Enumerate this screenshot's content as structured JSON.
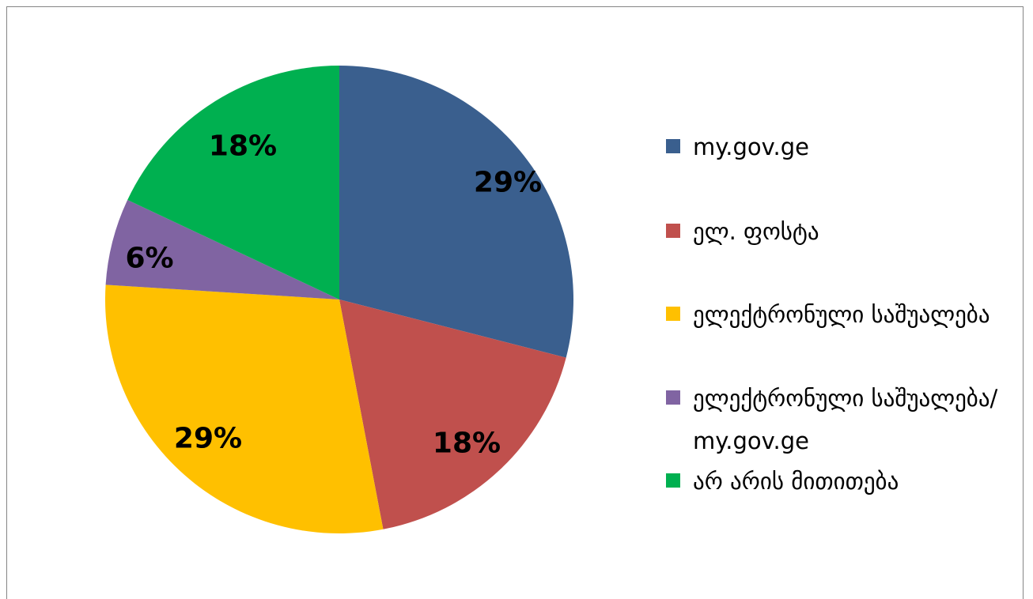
{
  "chart_data": {
    "type": "pie",
    "title": "",
    "start_angle_deg": 0,
    "direction": "clockwise",
    "slices": [
      {
        "name": "my.gov.ge",
        "value": 29,
        "label": "29%",
        "color": "#3a5f8e"
      },
      {
        "name": "ელ. ფოსტა",
        "value": 18,
        "label": "18%",
        "color": "#c0504d"
      },
      {
        "name": "ელექტრონული საშუალება",
        "value": 29,
        "label": "29%",
        "color": "#ffc000"
      },
      {
        "name": "ელექტრონული საშუალება/ my.gov.ge",
        "value": 6,
        "label": "6%",
        "color": "#8064a2"
      },
      {
        "name": "არ არის მითითება",
        "value": 18,
        "label": "18%",
        "color": "#00b050"
      }
    ],
    "legend": {
      "position": "right"
    }
  }
}
